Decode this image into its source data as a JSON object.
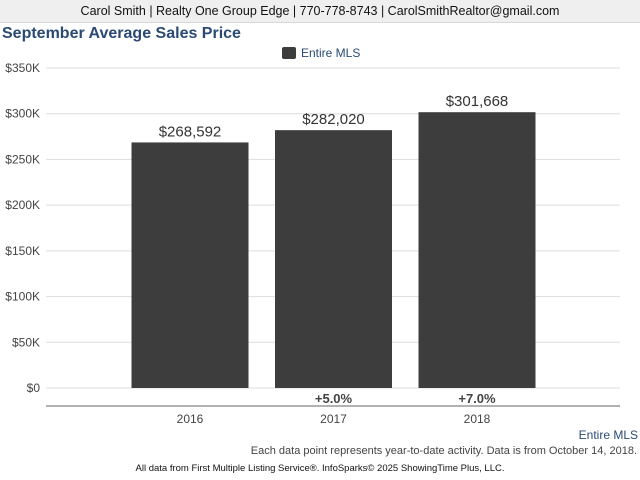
{
  "header": {
    "contact": "Carol Smith | Realty One Group Edge | 770-778-8743 | CarolSmithRealtor@gmail.com"
  },
  "chart_data": {
    "type": "bar",
    "title": "September Average Sales Price",
    "categories": [
      "2016",
      "2017",
      "2018"
    ],
    "series": [
      {
        "name": "Entire MLS",
        "values": [
          268592,
          282020,
          301668
        ],
        "color": "#3d3d3d"
      }
    ],
    "data_labels": [
      "$268,592",
      "$282,020",
      "$301,668"
    ],
    "change_labels": [
      "",
      "+5.0%",
      "+7.0%"
    ],
    "ylim": [
      0,
      350000
    ],
    "yticks": [
      0,
      50000,
      100000,
      150000,
      200000,
      250000,
      300000,
      350000
    ],
    "ytick_labels": [
      "$0",
      "$50K",
      "$100K",
      "$150K",
      "$200K",
      "$250K",
      "$300K",
      "$350K"
    ],
    "grid": true,
    "legend_position": "top-center"
  },
  "footer": {
    "series_link": "Entire MLS",
    "note": "Each data point represents year-to-date activity. Data is from October 14, 2018.",
    "credit": "All data from First Multiple Listing Service®. InfoSparks© 2025 ShowingTime Plus, LLC."
  }
}
